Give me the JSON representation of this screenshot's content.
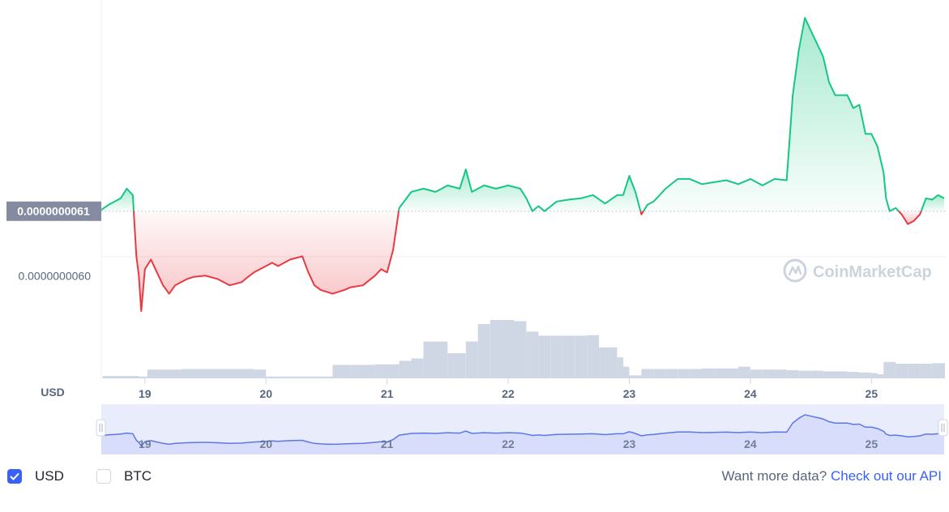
{
  "chart_data": {
    "type": "line",
    "title": "",
    "baseline_label": "0.0000000061",
    "y_tick_labels": [
      "0.0000000060"
    ],
    "x_tick_labels": [
      "19",
      "20",
      "21",
      "22",
      "23",
      "24",
      "25"
    ],
    "ylabel": "USD",
    "watermark": "CoinMarketCap",
    "baseline_value": 6.1e-09,
    "ylim": [
      5.93e-09,
      6.4e-09
    ],
    "series": [
      {
        "x": [
          18.64,
          18.7,
          18.8,
          18.85,
          18.9,
          18.93,
          18.95,
          18.97,
          19.0,
          19.05,
          19.1,
          19.15,
          19.2,
          19.25,
          19.3,
          19.35,
          19.4,
          19.5,
          19.6,
          19.7,
          19.8,
          19.85,
          19.9,
          20.0,
          20.05,
          20.1,
          20.15,
          20.2,
          20.3,
          20.35,
          20.4,
          20.45,
          20.5,
          20.55,
          20.6,
          20.65,
          20.7,
          20.8,
          20.9,
          20.95,
          21.0,
          21.05,
          21.1,
          21.2,
          21.3,
          21.4,
          21.5,
          21.6,
          21.65,
          21.7,
          21.8,
          21.9,
          22.0,
          22.1,
          22.15,
          22.2,
          22.25,
          22.3,
          22.4,
          22.5,
          22.6,
          22.7,
          22.8,
          22.9,
          22.95,
          23.0,
          23.05,
          23.1,
          23.15,
          23.2,
          23.3,
          23.4,
          23.5,
          23.6,
          23.7,
          23.8,
          23.9,
          24.0,
          24.1,
          24.2,
          24.3,
          24.32,
          24.35,
          24.4,
          24.45,
          24.5,
          24.55,
          24.6,
          24.65,
          24.7,
          24.8,
          24.85,
          24.9,
          24.95,
          25.0,
          25.05,
          25.1,
          25.12,
          25.15,
          25.2,
          25.25,
          25.3,
          25.35,
          25.4,
          25.45,
          25.5,
          25.55,
          25.6
        ],
        "y": [
          6.102e-09,
          6.11e-09,
          6.12e-09,
          6.135e-09,
          6.125e-09,
          6.03e-09,
          6e-09,
          5.945e-09,
          6.01e-09,
          6.025e-09,
          6.005e-09,
          5.985e-09,
          5.972e-09,
          5.985e-09,
          5.99e-09,
          5.995e-09,
          5.998e-09,
          6e-09,
          5.995e-09,
          5.985e-09,
          5.99e-09,
          5.998e-09,
          6.005e-09,
          6.015e-09,
          6.02e-09,
          6.015e-09,
          6.02e-09,
          6.025e-09,
          6.03e-09,
          6.005e-09,
          5.985e-09,
          5.978e-09,
          5.975e-09,
          5.972e-09,
          5.975e-09,
          5.978e-09,
          5.982e-09,
          5.985e-09,
          6e-09,
          6.01e-09,
          6.005e-09,
          6.04e-09,
          6.105e-09,
          6.13e-09,
          6.135e-09,
          6.13e-09,
          6.14e-09,
          6.135e-09,
          6.165e-09,
          6.13e-09,
          6.14e-09,
          6.135e-09,
          6.14e-09,
          6.135e-09,
          6.12e-09,
          6.1e-09,
          6.108e-09,
          6.1e-09,
          6.115e-09,
          6.118e-09,
          6.12e-09,
          6.125e-09,
          6.112e-09,
          6.125e-09,
          6.125e-09,
          6.155e-09,
          6.13e-09,
          6.095e-09,
          6.11e-09,
          6.115e-09,
          6.135e-09,
          6.15e-09,
          6.15e-09,
          6.142e-09,
          6.145e-09,
          6.148e-09,
          6.142e-09,
          6.15e-09,
          6.14e-09,
          6.15e-09,
          6.148e-09,
          6.2e-09,
          6.28e-09,
          6.35e-09,
          6.4e-09,
          6.38e-09,
          6.36e-09,
          6.34e-09,
          6.3e-09,
          6.28e-09,
          6.28e-09,
          6.26e-09,
          6.265e-09,
          6.22e-09,
          6.22e-09,
          6.2e-09,
          6.16e-09,
          6.12e-09,
          6.1e-09,
          6.105e-09,
          6.095e-09,
          6.08e-09,
          6.085e-09,
          6.095e-09,
          6.12e-09,
          6.118e-09,
          6.125e-09,
          6.12e-09
        ]
      }
    ],
    "volume": {
      "x": [
        18.65,
        18.8,
        18.95,
        19.02,
        19.1,
        19.3,
        19.5,
        19.7,
        19.9,
        20.0,
        20.2,
        20.4,
        20.55,
        20.7,
        20.9,
        21.0,
        21.1,
        21.2,
        21.3,
        21.4,
        21.5,
        21.55,
        21.65,
        21.75,
        21.85,
        21.95,
        22.05,
        22.15,
        22.25,
        22.35,
        22.45,
        22.55,
        22.65,
        22.75,
        22.8,
        22.9,
        22.95,
        23.0,
        23.05,
        23.1,
        23.2,
        23.3,
        23.4,
        23.5,
        23.6,
        23.7,
        23.8,
        23.9,
        24.0,
        24.1,
        24.2,
        24.3,
        24.4,
        24.5,
        24.6,
        24.7,
        24.8,
        24.9,
        25.0,
        25.05,
        25.1,
        25.2,
        25.3,
        25.4,
        25.5,
        25.6
      ],
      "y": [
        0.04,
        0.04,
        0.03,
        0.15,
        0.15,
        0.16,
        0.16,
        0.16,
        0.15,
        0.03,
        0.03,
        0.03,
        0.23,
        0.23,
        0.24,
        0.24,
        0.3,
        0.34,
        0.63,
        0.63,
        0.43,
        0.43,
        0.63,
        0.93,
        1.0,
        1.0,
        0.98,
        0.8,
        0.73,
        0.73,
        0.73,
        0.73,
        0.74,
        0.53,
        0.53,
        0.36,
        0.2,
        0.05,
        0.05,
        0.16,
        0.16,
        0.16,
        0.16,
        0.16,
        0.17,
        0.17,
        0.17,
        0.2,
        0.15,
        0.15,
        0.15,
        0.14,
        0.13,
        0.13,
        0.12,
        0.12,
        0.11,
        0.1,
        0.09,
        0.07,
        0.28,
        0.25,
        0.25,
        0.25,
        0.26,
        0.26
      ]
    }
  },
  "controls": {
    "usd_label": "USD",
    "usd_checked": true,
    "btc_label": "BTC",
    "btc_checked": false,
    "more_text": "Want more data?",
    "api_link": "Check out our API"
  },
  "colors": {
    "up": "#16c784",
    "down": "#ea3943",
    "baseline_box": "#858ca2",
    "navigator_fill": "#e8ecfb",
    "navigator_line": "#5d78e6",
    "volume": "#cfd6e4",
    "accent": "#3861fb"
  }
}
